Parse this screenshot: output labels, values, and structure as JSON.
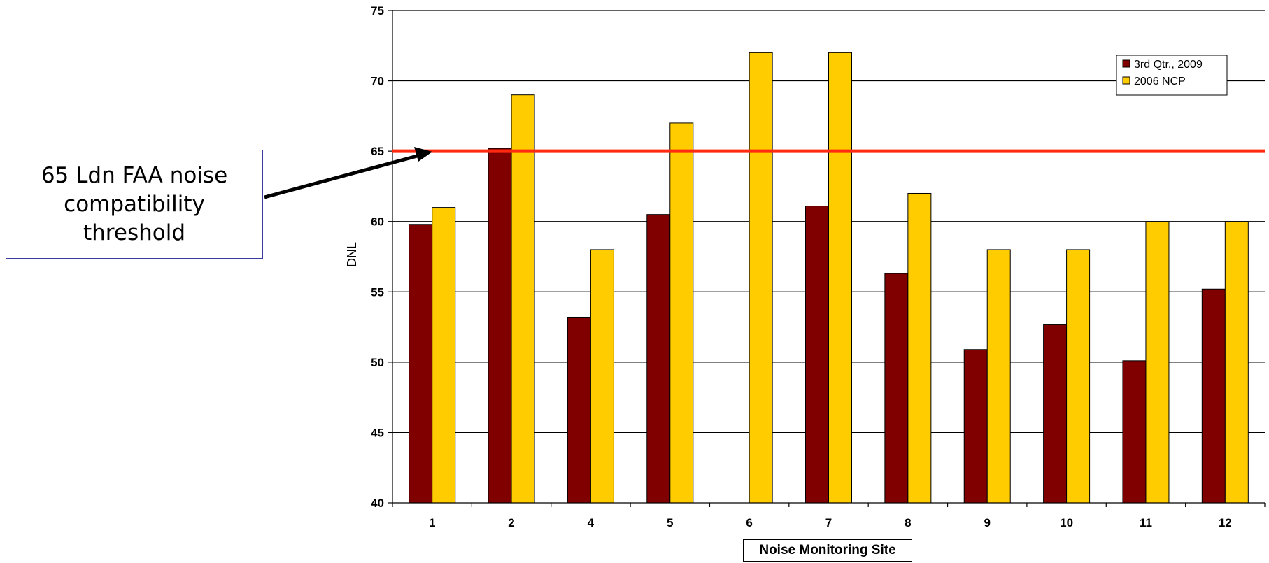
{
  "callout": {
    "text": "65 Ldn FAA noise compatibility threshold"
  },
  "chart_data": {
    "type": "bar",
    "xlabel": "Noise Monitoring Site",
    "ylabel": "DNL",
    "ylim": [
      40,
      75
    ],
    "yticks": [
      40,
      45,
      50,
      55,
      60,
      65,
      70,
      75
    ],
    "categories": [
      "1",
      "2",
      "4",
      "5",
      "6",
      "7",
      "8",
      "9",
      "10",
      "11",
      "12"
    ],
    "series": [
      {
        "name": "3rd Qtr., 2009",
        "color": "#800000",
        "values": [
          59.8,
          65.2,
          53.2,
          60.5,
          null,
          61.1,
          56.3,
          50.9,
          52.7,
          50.1,
          55.2
        ]
      },
      {
        "name": "2006 NCP",
        "color": "#FFCC00",
        "values": [
          61,
          69,
          58,
          67,
          72,
          72,
          62,
          58,
          58,
          60,
          60
        ]
      }
    ],
    "threshold": {
      "value": 65,
      "color": "#FF2A10"
    },
    "grid": true,
    "legend_position": "top-right"
  }
}
